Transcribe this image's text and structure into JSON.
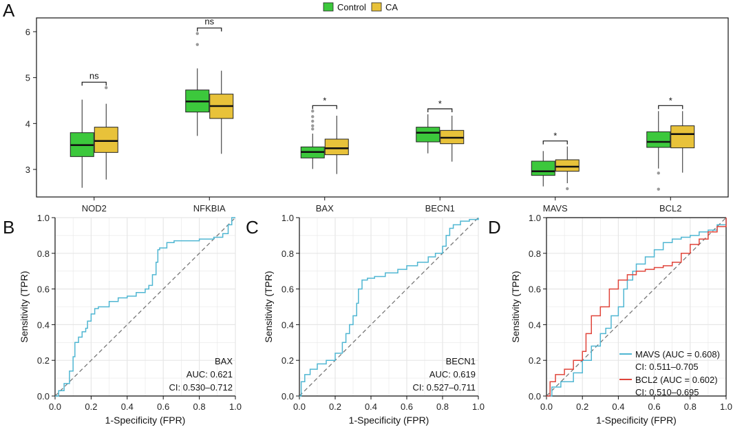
{
  "colors": {
    "control": "#3CC83C",
    "ca": "#E8C23A",
    "roc_blue": "#4FB6D2",
    "roc_red": "#E0443A",
    "diagonal": "#777777",
    "grid": "#E6E6E6"
  },
  "chart_data": [
    {
      "panel": "A",
      "type": "box",
      "legend": [
        {
          "name": "Control",
          "color_key": "control"
        },
        {
          "name": "CA",
          "color_key": "ca"
        }
      ],
      "ylim": [
        2.4,
        6.3
      ],
      "yticks": [
        3,
        4,
        5,
        6
      ],
      "categories": [
        "NOD2",
        "NFKBIA",
        "BAX",
        "BECN1",
        "MAVS",
        "BCL2"
      ],
      "groups": [
        {
          "category": "NOD2",
          "control": {
            "whisker_low": 2.6,
            "q1": 3.28,
            "median": 3.53,
            "q3": 3.8,
            "whisker_high": 4.52,
            "outliers": []
          },
          "ca": {
            "whisker_low": 2.78,
            "q1": 3.37,
            "median": 3.62,
            "q3": 3.92,
            "whisker_high": 4.43,
            "outliers": [
              4.78
            ]
          },
          "sig": "ns"
        },
        {
          "category": "NFKBIA",
          "control": {
            "whisker_low": 3.73,
            "q1": 4.25,
            "median": 4.48,
            "q3": 4.73,
            "whisker_high": 5.2,
            "outliers": [
              5.72,
              5.96
            ]
          },
          "ca": {
            "whisker_low": 3.34,
            "q1": 4.11,
            "median": 4.38,
            "q3": 4.64,
            "whisker_high": 5.15,
            "outliers": []
          },
          "sig": "ns"
        },
        {
          "category": "BAX",
          "control": {
            "whisker_low": 3.01,
            "q1": 3.25,
            "median": 3.38,
            "q3": 3.49,
            "whisker_high": 3.78,
            "outliers": [
              3.88,
              3.95,
              4.05,
              4.15,
              4.27
            ]
          },
          "ca": {
            "whisker_low": 2.9,
            "q1": 3.32,
            "median": 3.46,
            "q3": 3.66,
            "whisker_high": 4.17,
            "outliers": []
          },
          "sig": "*"
        },
        {
          "category": "BECN1",
          "control": {
            "whisker_low": 3.35,
            "q1": 3.6,
            "median": 3.8,
            "q3": 3.92,
            "whisker_high": 4.2,
            "outliers": []
          },
          "ca": {
            "whisker_low": 3.17,
            "q1": 3.56,
            "median": 3.69,
            "q3": 3.85,
            "whisker_high": 4.17,
            "outliers": []
          },
          "sig": "*"
        },
        {
          "category": "MAVS",
          "control": {
            "whisker_low": 2.63,
            "q1": 2.87,
            "median": 2.96,
            "q3": 3.18,
            "whisker_high": 3.4,
            "outliers": []
          },
          "ca": {
            "whisker_low": 2.7,
            "q1": 2.96,
            "median": 3.06,
            "q3": 3.21,
            "whisker_high": 3.5,
            "outliers": [
              2.58
            ]
          },
          "sig": "*"
        },
        {
          "category": "BCL2",
          "control": {
            "whisker_low": 3.02,
            "q1": 3.48,
            "median": 3.6,
            "q3": 3.82,
            "whisker_high": 4.27,
            "outliers": [
              2.92,
              2.57
            ]
          },
          "ca": {
            "whisker_low": 2.93,
            "q1": 3.47,
            "median": 3.77,
            "q3": 3.95,
            "whisker_high": 4.27,
            "outliers": []
          },
          "sig": "*"
        }
      ]
    },
    {
      "panel": "B",
      "type": "line",
      "xlabel": "1-Specificity (FPR)",
      "ylabel": "Sensitivity (TPR)",
      "xlim": [
        0,
        1
      ],
      "ylim": [
        0,
        1
      ],
      "ticks": [
        "0.0",
        "0.2",
        "0.4",
        "0.6",
        "0.8",
        "1.0"
      ],
      "series": [
        {
          "name": "BAX",
          "color_key": "roc_blue",
          "x": [
            0,
            0.02,
            0.05,
            0.08,
            0.1,
            0.11,
            0.13,
            0.15,
            0.17,
            0.18,
            0.2,
            0.22,
            0.24,
            0.26,
            0.3,
            0.35,
            0.4,
            0.45,
            0.5,
            0.52,
            0.54,
            0.56,
            0.57,
            0.58,
            0.62,
            0.66,
            0.72,
            0.8,
            0.88,
            0.93,
            0.96,
            0.98,
            1.0
          ],
          "y": [
            0,
            0.03,
            0.07,
            0.14,
            0.22,
            0.3,
            0.33,
            0.36,
            0.38,
            0.42,
            0.46,
            0.49,
            0.5,
            0.5,
            0.53,
            0.55,
            0.56,
            0.58,
            0.6,
            0.62,
            0.68,
            0.75,
            0.82,
            0.83,
            0.86,
            0.87,
            0.87,
            0.88,
            0.89,
            0.91,
            0.96,
            1.0,
            1.0
          ]
        }
      ],
      "annotation": [
        "BAX",
        "AUC: 0.621",
        "CI: 0.530–0.712"
      ]
    },
    {
      "panel": "C",
      "type": "line",
      "xlabel": "1-Specificity (FPR)",
      "ylabel": "Sensitivity (TPR)",
      "xlim": [
        0,
        1
      ],
      "ylim": [
        0,
        1
      ],
      "ticks": [
        "0.0",
        "0.2",
        "0.4",
        "0.6",
        "0.8",
        "1.0"
      ],
      "series": [
        {
          "name": "BECN1",
          "color_key": "roc_blue",
          "x": [
            0,
            0.01,
            0.03,
            0.06,
            0.1,
            0.15,
            0.2,
            0.24,
            0.26,
            0.28,
            0.3,
            0.32,
            0.33,
            0.35,
            0.38,
            0.42,
            0.48,
            0.55,
            0.6,
            0.66,
            0.72,
            0.76,
            0.8,
            0.82,
            0.84,
            0.86,
            0.9,
            0.95,
            1.0
          ],
          "y": [
            0,
            0.08,
            0.12,
            0.15,
            0.18,
            0.2,
            0.24,
            0.3,
            0.35,
            0.4,
            0.45,
            0.52,
            0.6,
            0.65,
            0.66,
            0.67,
            0.69,
            0.71,
            0.73,
            0.75,
            0.78,
            0.8,
            0.84,
            0.9,
            0.94,
            0.96,
            0.98,
            0.99,
            1.0
          ]
        }
      ],
      "annotation": [
        "BECN1",
        "AUC: 0.619",
        "CI: 0.527–0.711"
      ]
    },
    {
      "panel": "D",
      "type": "line",
      "xlabel": "1-Specificity (FPR)",
      "ylabel": "Sensitivity (TPR)",
      "xlim": [
        0,
        1
      ],
      "ylim": [
        0,
        1
      ],
      "ticks": [
        "0.0",
        "0.2",
        "0.4",
        "0.6",
        "0.8",
        "1.0"
      ],
      "series": [
        {
          "name": "MAVS (AUC = 0.608)",
          "ci": "CI: 0.511–0.705",
          "color_key": "roc_blue",
          "x": [
            0,
            0.03,
            0.08,
            0.15,
            0.2,
            0.25,
            0.3,
            0.33,
            0.36,
            0.4,
            0.43,
            0.45,
            0.48,
            0.5,
            0.55,
            0.6,
            0.65,
            0.7,
            0.75,
            0.8,
            0.85,
            0.9,
            0.95,
            1.0
          ],
          "y": [
            0,
            0.05,
            0.08,
            0.13,
            0.2,
            0.28,
            0.35,
            0.38,
            0.45,
            0.5,
            0.6,
            0.65,
            0.7,
            0.74,
            0.78,
            0.82,
            0.86,
            0.88,
            0.89,
            0.9,
            0.92,
            0.93,
            0.96,
            1.0
          ]
        },
        {
          "name": "BCL2 (AUC = 0.602)",
          "ci": "CI: 0.510–0.695",
          "color_key": "roc_red",
          "x": [
            0,
            0.02,
            0.05,
            0.1,
            0.15,
            0.2,
            0.22,
            0.25,
            0.3,
            0.35,
            0.4,
            0.45,
            0.5,
            0.55,
            0.6,
            0.65,
            0.7,
            0.75,
            0.8,
            0.85,
            0.9,
            0.95,
            1.0
          ],
          "y": [
            0,
            0.08,
            0.12,
            0.15,
            0.2,
            0.25,
            0.35,
            0.45,
            0.5,
            0.6,
            0.65,
            0.68,
            0.7,
            0.71,
            0.72,
            0.73,
            0.75,
            0.8,
            0.85,
            0.88,
            0.92,
            0.95,
            1.0
          ]
        }
      ]
    }
  ]
}
